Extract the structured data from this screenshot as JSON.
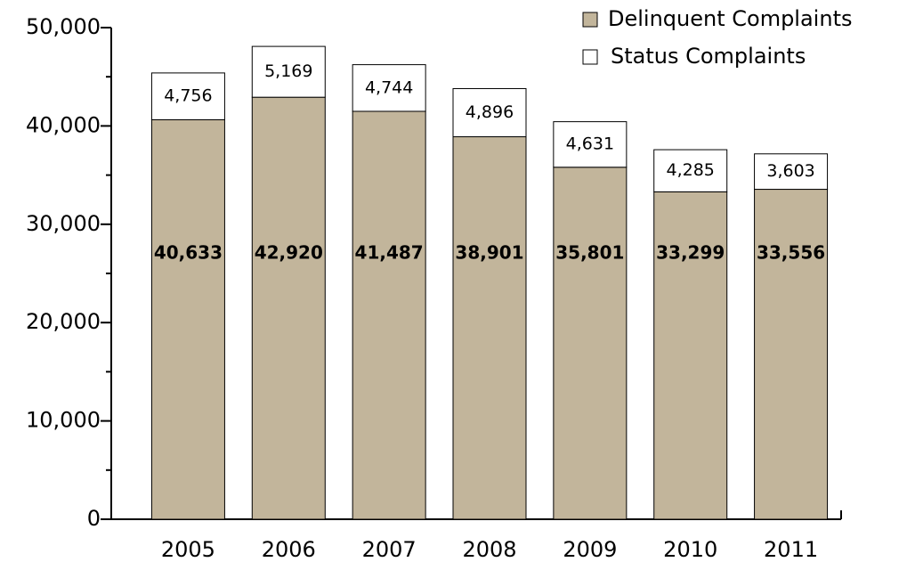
{
  "chart_data": {
    "type": "stacked_bar",
    "categories": [
      "2005",
      "2006",
      "2007",
      "2008",
      "2009",
      "2010",
      "2011"
    ],
    "series": [
      {
        "name": "Delinquent Complaints",
        "color": "#c2b59b",
        "values": [
          40633,
          42920,
          41487,
          38901,
          35801,
          33299,
          33556
        ],
        "value_labels": [
          "40,633",
          "42,920",
          "41,487",
          "38,901",
          "35,801",
          "33,299",
          "33,556"
        ]
      },
      {
        "name": "Status Complaints",
        "color": "#ffffff",
        "values": [
          4756,
          5169,
          4744,
          4896,
          4631,
          4285,
          3603
        ],
        "value_labels": [
          "4,756",
          "5,169",
          "4,744",
          "4,896",
          "4,631",
          "4,285",
          "3,603"
        ]
      }
    ],
    "ylim": [
      0,
      50000
    ],
    "yticks": [
      0,
      {
        "value": 10000,
        "label": "10,000"
      },
      {
        "value": 20000,
        "label": "20,000"
      },
      {
        "value": 30000,
        "label": "30,000"
      },
      {
        "value": 40000,
        "label": "40,000"
      },
      {
        "value": 50000,
        "label": "50,000"
      }
    ],
    "minor_yticks": [
      5000,
      15000,
      25000,
      35000,
      45000
    ],
    "legend": "top-right"
  }
}
